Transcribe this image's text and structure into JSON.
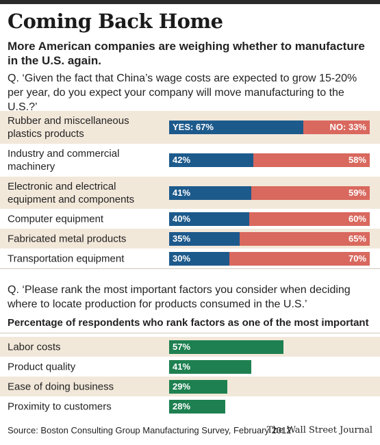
{
  "title": "Coming Back Home",
  "subtitle": "More American companies are weighing whether to manufacture in the U.S. again.",
  "question1": "Q. ‘Given the fact that China’s wage costs are expected to grow 15-20% per year, do you expect your company will move manufacturing to the U.S.?’",
  "question2": "Q. ‘Please rank the most important factors you consider when deciding where to locate production for products consumed in the U.S.’",
  "subhead2": "Percentage of respondents who rank factors as one of the most important",
  "source": "Source: Boston Consulting Group Manufacturing Survey, February 2012",
  "credit": "The Wall Street Journal",
  "colors": {
    "yes": "#1d5a8c",
    "no": "#d9685e",
    "factor": "#1e8050",
    "band": "#f2e8da"
  },
  "chart_data": [
    {
      "type": "bar",
      "stacked": true,
      "orientation": "horizontal",
      "categories": [
        "Rubber and miscellaneous plastics products",
        "Industry and commercial machinery",
        "Electronic and electrical equipment and components",
        "Computer equipment",
        "Fabricated metal products",
        "Transportation equipment"
      ],
      "series": [
        {
          "name": "YES",
          "values": [
            67,
            42,
            41,
            40,
            35,
            30
          ]
        },
        {
          "name": "NO",
          "values": [
            33,
            58,
            59,
            60,
            65,
            70
          ]
        }
      ],
      "value_labels": {
        "YES": [
          "YES: 67%",
          "42%",
          "41%",
          "40%",
          "35%",
          "30%"
        ],
        "NO": [
          "NO: 33%",
          "58%",
          "59%",
          "60%",
          "65%",
          "70%"
        ]
      },
      "xlim": [
        0,
        100
      ]
    },
    {
      "type": "bar",
      "orientation": "horizontal",
      "categories": [
        "Labor costs",
        "Product quality",
        "Ease of doing business",
        "Proximity to customers"
      ],
      "values": [
        57,
        41,
        29,
        28
      ],
      "value_labels": [
        "57%",
        "41%",
        "29%",
        "28%"
      ],
      "xlim": [
        0,
        100
      ]
    }
  ]
}
